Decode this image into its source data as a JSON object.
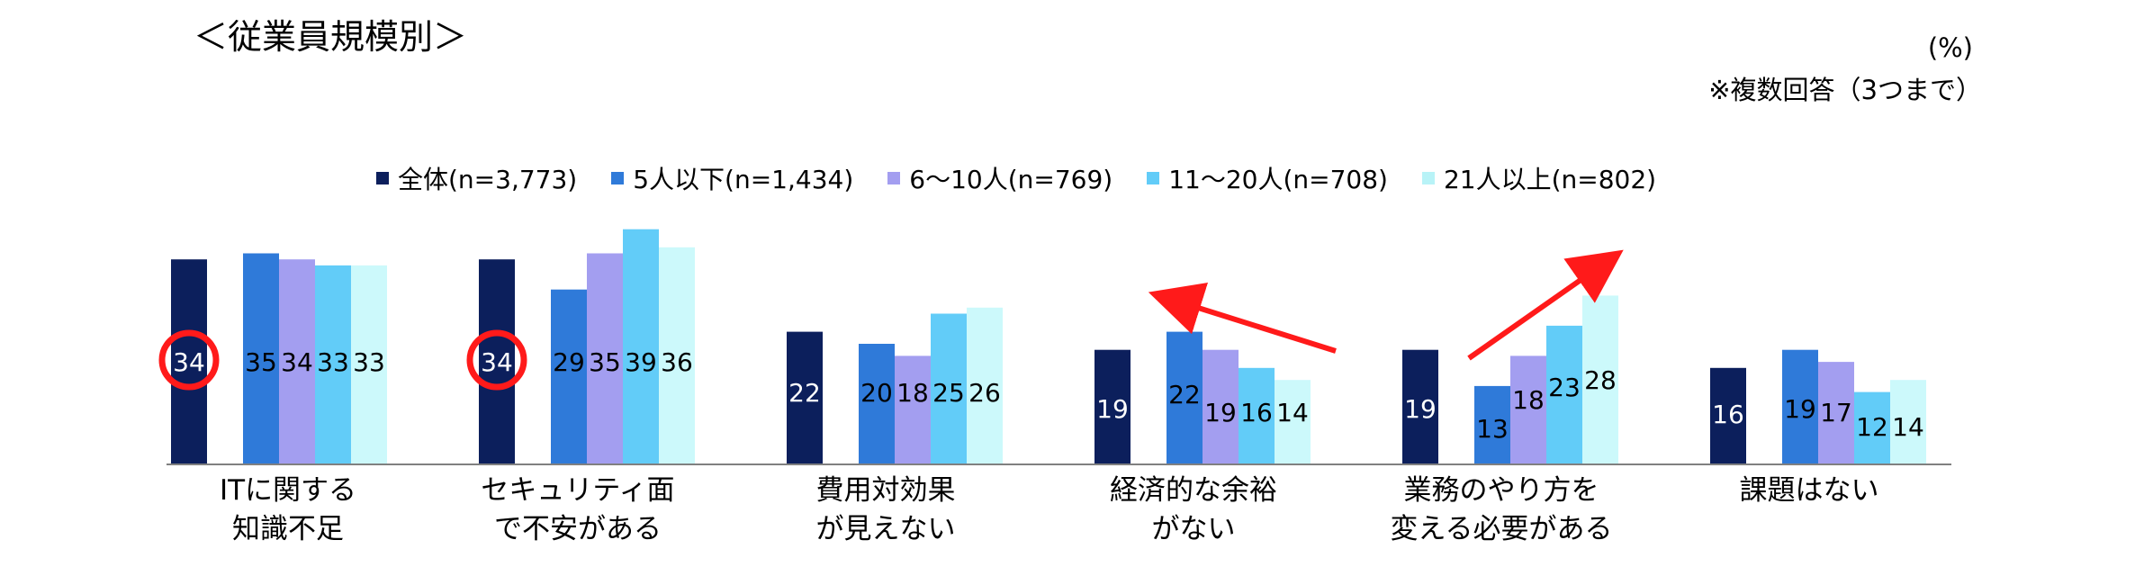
{
  "heading": "＜従業員規模別＞",
  "unit_label": "(%)",
  "note": "※複数回答（3つまで）",
  "chart_data": {
    "type": "bar",
    "title": "",
    "xlabel": "",
    "ylabel": "",
    "ylim": [
      0,
      40
    ],
    "grid": false,
    "legend_position": "top",
    "categories": [
      [
        "ITに関する",
        "知識不足"
      ],
      [
        "セキュリティ面",
        "で不安がある"
      ],
      [
        "費用対効果",
        "が見えない"
      ],
      [
        "経済的な余裕",
        "がない"
      ],
      [
        "業務のやり方を",
        "変える必要がある"
      ],
      [
        "課題はない"
      ]
    ],
    "series": [
      {
        "name": "全体(n=3,773)",
        "color": "#0c1f5c",
        "label_color": "#ffffff",
        "values": [
          34,
          34,
          22,
          19,
          19,
          16
        ]
      },
      {
        "name": "5人以下(n=1,434)",
        "color": "#2f7ad9",
        "label_color": "#000000",
        "values": [
          35,
          29,
          20,
          22,
          13,
          19
        ]
      },
      {
        "name": "6〜10人(n=769)",
        "color": "#a39ef0",
        "label_color": "#000000",
        "values": [
          34,
          35,
          18,
          19,
          18,
          17
        ]
      },
      {
        "name": "11〜20人(n=708)",
        "color": "#62ccf8",
        "label_color": "#000000",
        "values": [
          33,
          39,
          25,
          16,
          23,
          12
        ]
      },
      {
        "name": "21人以上(n=802)",
        "color": "#ccf9fb",
        "label_color": "#000000",
        "values": [
          33,
          36,
          26,
          14,
          28,
          14
        ]
      }
    ],
    "annotations": [
      {
        "type": "circle",
        "category_index": 0,
        "series_index": 0,
        "color": "#ff1a1a"
      },
      {
        "type": "circle",
        "category_index": 1,
        "series_index": 0,
        "color": "#ff1a1a"
      },
      {
        "type": "arrow",
        "category_index": 3,
        "direction": "up-left",
        "color": "#ff1a1a"
      },
      {
        "type": "arrow",
        "category_index": 4,
        "direction": "up-right",
        "color": "#ff1a1a"
      }
    ]
  }
}
